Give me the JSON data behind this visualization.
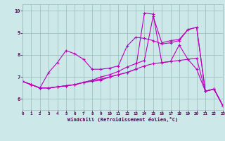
{
  "xlabel": "Windchill (Refroidissement éolien,°C)",
  "xlim": [
    0,
    23
  ],
  "ylim": [
    5.5,
    10.3
  ],
  "yticks": [
    6,
    7,
    8,
    9,
    10
  ],
  "xticks": [
    0,
    1,
    2,
    3,
    4,
    5,
    6,
    7,
    8,
    9,
    10,
    11,
    12,
    13,
    14,
    15,
    16,
    17,
    18,
    19,
    20,
    21,
    22,
    23
  ],
  "background_color": "#cce8e8",
  "line_color": "#bb00bb",
  "grid_color": "#99bbbb",
  "lines": [
    [
      6.8,
      6.65,
      6.5,
      7.2,
      7.65,
      8.2,
      8.05,
      7.8,
      7.35,
      7.35,
      7.4,
      7.5,
      8.4,
      8.8,
      8.75,
      8.65,
      8.5,
      8.55,
      8.65,
      9.15,
      9.25,
      6.35,
      6.45,
      5.7
    ],
    [
      6.8,
      6.65,
      6.5,
      6.5,
      6.55,
      6.6,
      6.65,
      6.75,
      6.8,
      6.85,
      7.0,
      7.1,
      7.2,
      7.35,
      7.5,
      7.6,
      7.65,
      7.7,
      7.75,
      7.8,
      7.85,
      6.35,
      6.45,
      5.7
    ],
    [
      6.8,
      6.65,
      6.5,
      6.5,
      6.55,
      6.6,
      6.65,
      6.75,
      6.85,
      7.0,
      7.1,
      7.25,
      7.45,
      7.6,
      7.75,
      9.75,
      8.55,
      8.65,
      8.7,
      9.15,
      9.25,
      6.35,
      6.45,
      5.7
    ],
    [
      6.8,
      6.65,
      6.5,
      6.5,
      6.55,
      6.6,
      6.65,
      6.75,
      6.85,
      6.9,
      7.0,
      7.1,
      7.2,
      7.35,
      9.9,
      9.85,
      7.65,
      7.7,
      8.45,
      7.8,
      7.35,
      6.35,
      6.45,
      5.7
    ]
  ]
}
